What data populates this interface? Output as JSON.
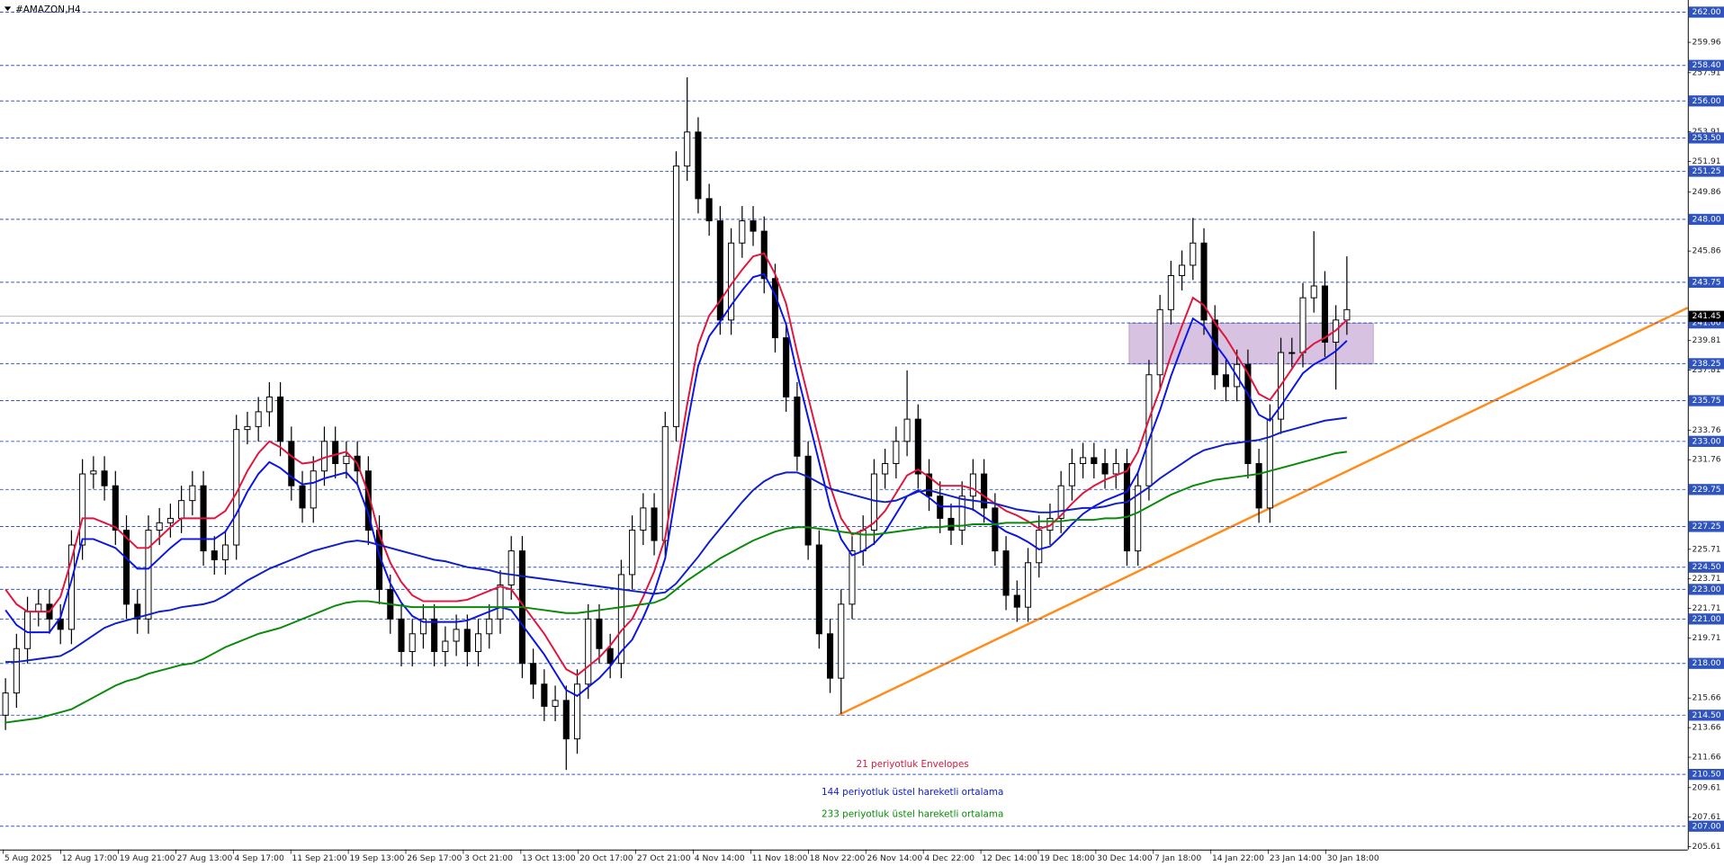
{
  "chart_data": {
    "type": "candlestick",
    "title": "#AMAZON,H4",
    "xtick_labels": [
      "5 Aug 2025",
      "12 Aug 17:00",
      "19 Aug 21:00",
      "27 Aug 13:00",
      "4 Sep 17:00",
      "11 Sep 21:00",
      "19 Sep 13:00",
      "26 Sep 17:00",
      "3 Oct 21:00",
      "13 Oct 13:00",
      "20 Oct 17:00",
      "27 Oct 21:00",
      "4 Nov 14:00",
      "11 Nov 18:00",
      "18 Nov 22:00",
      "26 Nov 14:00",
      "4 Dec 22:00",
      "12 Dec 14:00",
      "19 Dec 18:00",
      "30 Dec 14:00",
      "7 Jan 18:00",
      "14 Jan 22:00",
      "23 Jan 14:00",
      "30 Jan 18:00"
    ],
    "ylim": [
      205.43,
      262.82
    ],
    "yticks": [
      259.96,
      257.91,
      253.91,
      251.91,
      249.86,
      245.86,
      239.81,
      237.81,
      233.76,
      231.76,
      225.71,
      223.71,
      221.71,
      219.71,
      215.66,
      213.66,
      211.66,
      209.61,
      207.61,
      205.61
    ],
    "levels": [
      {
        "value": 262,
        "label": "262.00"
      },
      {
        "value": 258.4,
        "label": "258.40"
      },
      {
        "value": 256,
        "label": "256.00"
      },
      {
        "value": 253.5,
        "label": "253.50"
      },
      {
        "value": 251.25,
        "label": "251.25"
      },
      {
        "value": 248,
        "label": "248.00"
      },
      {
        "value": 243.75,
        "label": "243.75"
      },
      {
        "value": 241,
        "label": "241.00"
      },
      {
        "value": 238.25,
        "label": "238.25"
      },
      {
        "value": 235.75,
        "label": "235.75"
      },
      {
        "value": 233,
        "label": "233.00"
      },
      {
        "value": 229.75,
        "label": "229.75"
      },
      {
        "value": 227.25,
        "label": "227.25"
      },
      {
        "value": 224.5,
        "label": "224.50"
      },
      {
        "value": 223,
        "label": "223.00"
      },
      {
        "value": 221,
        "label": "221.00"
      },
      {
        "value": 218,
        "label": "218.00"
      },
      {
        "value": 214.5,
        "label": "214.50"
      },
      {
        "value": 210.5,
        "label": "210.50"
      },
      {
        "value": 207,
        "label": "207.00"
      }
    ],
    "level_color": "#2f54c0",
    "current_price": {
      "value": 241.45,
      "label": "241.45"
    },
    "candles": {
      "open": [
        214.5,
        216,
        219,
        221.5,
        222,
        221,
        220.3,
        226,
        230.8,
        231,
        230,
        227,
        222,
        221,
        227,
        227.5,
        227.8,
        229,
        230,
        225.6,
        225,
        226,
        233.8,
        234,
        235,
        236,
        233,
        230,
        228.5,
        231,
        233,
        231.5,
        232,
        231,
        227,
        223,
        221,
        218.8,
        220,
        221,
        218.8,
        219.5,
        220.3,
        218.8,
        220,
        221,
        223.3,
        225.6,
        218,
        216.6,
        215.1,
        215.5,
        212.9,
        216.6,
        221,
        219,
        218,
        224,
        227,
        228.5,
        226.3,
        234,
        251.6,
        253.9,
        249.4,
        247.9,
        241.2,
        246.4,
        247.9,
        247.2,
        244,
        240,
        236,
        232,
        226,
        220,
        217,
        222,
        225.6,
        227,
        230.8,
        231.5,
        233,
        234.5,
        230.8,
        229.3,
        227.8,
        227,
        229.3,
        230.8,
        228.5,
        225.6,
        222.6,
        221.8,
        224.8,
        227,
        227.8,
        230,
        231.5,
        231.9,
        231.5,
        230.8,
        231.5,
        225.6,
        230,
        237.5,
        241.9,
        244.2,
        244.9,
        246.4,
        241.2,
        237.5,
        236.7,
        238.2,
        231.5,
        228.5,
        234.5,
        239,
        239,
        242.7,
        243.5,
        239.7,
        241.2
      ],
      "high": [
        217,
        220,
        222.5,
        223,
        223,
        222,
        227,
        231.8,
        232,
        232,
        231,
        228,
        223,
        228,
        228.5,
        228.8,
        230,
        231,
        231,
        226.6,
        227,
        234.8,
        235,
        236,
        237,
        237,
        234,
        231,
        232,
        234,
        234,
        233,
        233,
        232,
        228,
        224,
        222,
        221,
        222,
        222,
        220.5,
        221.3,
        221.3,
        221,
        222,
        224.3,
        226.6,
        226.6,
        219,
        217.6,
        216.5,
        216.5,
        217.6,
        222,
        222,
        220,
        225,
        228,
        229.5,
        229.5,
        235,
        252.6,
        257.6,
        254.9,
        250.4,
        248.9,
        247.4,
        248.9,
        248.9,
        248.2,
        245,
        241,
        237,
        233,
        227,
        221,
        223,
        226.6,
        228,
        231.8,
        232.5,
        234,
        237.8,
        235.5,
        231.8,
        230.3,
        228.8,
        230.3,
        231.8,
        231.8,
        229.5,
        226.6,
        223.6,
        225.8,
        228,
        228.8,
        231,
        232.5,
        232.9,
        232.9,
        232.5,
        232.5,
        232.5,
        231,
        238.5,
        242.9,
        245.2,
        245.9,
        248.1,
        247.4,
        242.2,
        238.5,
        239.2,
        239.2,
        232.5,
        235.5,
        240,
        240,
        243.7,
        247.2,
        244.5,
        242.2,
        245.5
      ],
      "low": [
        213.5,
        215,
        218,
        220.5,
        220,
        219.3,
        219.3,
        225,
        229.8,
        229,
        226,
        221,
        220,
        220,
        226,
        226.5,
        226.8,
        228,
        224.6,
        224,
        224,
        225,
        232.8,
        233,
        234,
        232,
        229,
        227.5,
        227.5,
        230,
        230.5,
        230.5,
        230,
        226,
        222,
        220,
        217.8,
        217.8,
        219,
        217.8,
        217.8,
        218.5,
        217.8,
        217.8,
        219,
        220,
        222.3,
        217,
        215.6,
        214.1,
        214.1,
        210.8,
        211.9,
        215.6,
        218,
        217,
        217,
        223,
        226,
        225.3,
        225.3,
        233,
        250.6,
        248.4,
        246.9,
        240.2,
        240.2,
        245.4,
        246.2,
        243,
        239,
        235,
        231,
        225,
        219,
        216,
        214.6,
        221,
        224.6,
        226,
        229.8,
        230.5,
        232,
        229.8,
        228.3,
        226.8,
        226,
        226,
        228.3,
        227.5,
        224.6,
        221.6,
        220.8,
        220.8,
        223.8,
        226,
        226.8,
        229,
        230.5,
        230.5,
        229.8,
        229.8,
        224.6,
        224.6,
        229,
        236.5,
        240.9,
        243.2,
        243.9,
        240.2,
        236.5,
        235.7,
        235.7,
        230.5,
        227.5,
        227.5,
        233.5,
        238,
        238,
        241.7,
        238.7,
        236.5,
        240.2
      ],
      "close": [
        216,
        219,
        221.5,
        222,
        221,
        220.3,
        226,
        230.8,
        231,
        230,
        227,
        222,
        221,
        227,
        227.5,
        227.8,
        229,
        230,
        225.6,
        225,
        226,
        233.8,
        234,
        235,
        236,
        233,
        230,
        228.5,
        231,
        233,
        231.5,
        232,
        231,
        227,
        223,
        221,
        218.8,
        220,
        221,
        218.8,
        219.5,
        220.3,
        218.8,
        220,
        221,
        223.3,
        225.6,
        218,
        216.6,
        215.1,
        215.5,
        212.9,
        216.6,
        221,
        219,
        218,
        224,
        227,
        228.5,
        226.3,
        234,
        251.6,
        253.9,
        249.4,
        247.9,
        241.2,
        246.4,
        247.9,
        247.2,
        244,
        240,
        236,
        232,
        226,
        220,
        217,
        222,
        225.6,
        227,
        230.8,
        231.5,
        233,
        234.5,
        230.8,
        229.3,
        227.8,
        227,
        229.3,
        230.8,
        228.5,
        225.6,
        222.6,
        221.8,
        224.8,
        227,
        227.8,
        230,
        231.5,
        231.9,
        231.5,
        230.8,
        231.5,
        225.6,
        230,
        237.5,
        241.9,
        244.2,
        244.9,
        246.4,
        241.2,
        237.5,
        236.7,
        238.2,
        231.5,
        228.5,
        234.5,
        239,
        239,
        242.7,
        243.5,
        239.7,
        241.2,
        241.9
      ]
    },
    "series": [
      {
        "name": "21 periyotluk Envelopes",
        "color": "#e0143c",
        "values": [
          223,
          222,
          221.5,
          221.5,
          221.5,
          222.5,
          225,
          227.8,
          227.8,
          227.5,
          227.2,
          226.5,
          225.8,
          225.8,
          226.5,
          227.2,
          227.8,
          227.8,
          227.8,
          227.8,
          228.3,
          229.5,
          231,
          232.2,
          233,
          232.6,
          232,
          231.5,
          231.6,
          231.9,
          232.1,
          232.3,
          231.5,
          229.5,
          226.7,
          224.8,
          223.5,
          222.6,
          222.2,
          222.2,
          222.2,
          222.2,
          222.3,
          222.6,
          222.9,
          223.2,
          223,
          222,
          221,
          220,
          218.8,
          217.6,
          217.2,
          217.8,
          218.4,
          219.2,
          220.2,
          221,
          222.5,
          224.2,
          226.5,
          231,
          235.5,
          239.5,
          241.5,
          242.5,
          243.6,
          244.6,
          245.5,
          245.7,
          244.3,
          242.3,
          239,
          236,
          233,
          230,
          227.8,
          226.7,
          227,
          227.5,
          228.3,
          229.5,
          230.7,
          231.1,
          230.6,
          230,
          230,
          230,
          229.8,
          229.3,
          228.8,
          228.3,
          228,
          227.6,
          227.1,
          227.3,
          228,
          228.8,
          229.5,
          230,
          230.4,
          230.7,
          231,
          232.3,
          234.5,
          236.5,
          238.8,
          240.8,
          242.7,
          242.2,
          241,
          240,
          238.8,
          237.6,
          236.2,
          235.8,
          236.8,
          237.9,
          239,
          239.6,
          240,
          240.5,
          241.2
        ],
        "lower_color": "#0a14e6",
        "lower_values": [
          221.6,
          220.6,
          220.1,
          220.1,
          220.1,
          221.1,
          223.6,
          226.4,
          226.4,
          226.1,
          225.8,
          225.1,
          224.4,
          224.4,
          225.1,
          225.8,
          226.4,
          226.4,
          226.4,
          226.4,
          226.9,
          228.1,
          229.6,
          230.8,
          231.6,
          231.2,
          230.6,
          230.1,
          230.2,
          230.5,
          230.7,
          230.9,
          230.1,
          228.1,
          225.3,
          223.4,
          222.1,
          221.2,
          220.8,
          220.8,
          220.8,
          220.8,
          220.9,
          221.2,
          221.5,
          221.8,
          221.6,
          220.6,
          219.6,
          218.6,
          217.4,
          216.2,
          215.8,
          216.4,
          217,
          217.8,
          218.8,
          219.6,
          221.1,
          222.8,
          225.1,
          229.6,
          234.1,
          238.1,
          240.1,
          241.1,
          242.2,
          243.2,
          244.1,
          244.3,
          242.9,
          240.9,
          237.6,
          234.6,
          231.6,
          228.6,
          226.4,
          225.3,
          225.6,
          226.1,
          226.9,
          228.1,
          229.3,
          229.7,
          229.2,
          228.6,
          228.6,
          228.6,
          228.4,
          227.9,
          227.4,
          226.9,
          226.6,
          226.2,
          225.7,
          225.9,
          226.6,
          227.4,
          228.1,
          228.6,
          229,
          229.3,
          229.6,
          230.9,
          233.1,
          235.1,
          237.4,
          239.4,
          241.3,
          240.8,
          239.6,
          238.6,
          237.4,
          236.2,
          234.8,
          234.4,
          235.4,
          236.5,
          237.6,
          238.2,
          238.6,
          239.1,
          239.8
        ]
      },
      {
        "name": "144 periyotluk üstel hareketli ortalama",
        "color": "#1020c8",
        "values": [
          218.1,
          218.1,
          218.2,
          218.3,
          218.4,
          218.5,
          218.9,
          219.4,
          219.9,
          220.4,
          220.7,
          220.9,
          221.1,
          221.3,
          221.5,
          221.6,
          221.8,
          221.9,
          222,
          222.2,
          222.6,
          223.1,
          223.6,
          224,
          224.4,
          224.7,
          225,
          225.3,
          225.6,
          225.8,
          226,
          226.2,
          226.3,
          226.2,
          226,
          225.8,
          225.6,
          225.4,
          225.2,
          225,
          224.9,
          224.7,
          224.5,
          224.4,
          224.3,
          224.1,
          224,
          223.9,
          223.8,
          223.7,
          223.6,
          223.5,
          223.4,
          223.3,
          223.2,
          223.1,
          223,
          222.9,
          222.8,
          222.7,
          222.8,
          223.4,
          224.3,
          225.2,
          226.2,
          227.1,
          228,
          228.9,
          229.7,
          230.3,
          230.7,
          230.9,
          230.9,
          230.6,
          230.2,
          229.8,
          229.6,
          229.4,
          229.2,
          229,
          228.9,
          229,
          229.3,
          229.6,
          229.7,
          229.5,
          229.3,
          229.1,
          229,
          228.9,
          228.8,
          228.6,
          228.4,
          228.3,
          228.2,
          228.2,
          228.3,
          228.4,
          228.5,
          228.5,
          228.6,
          228.8,
          228.9,
          229.4,
          229.9,
          230.5,
          231,
          231.5,
          232,
          232.4,
          232.6,
          232.8,
          232.9,
          233,
          233.1,
          233.3,
          233.6,
          233.8,
          234,
          234.2,
          234.4,
          234.5,
          234.6
        ]
      },
      {
        "name": "233 periyotluk üstel hareketli ortalama",
        "color": "#0a8a0a",
        "values": [
          214,
          214.1,
          214.2,
          214.3,
          214.5,
          214.7,
          214.9,
          215.3,
          215.7,
          216.1,
          216.5,
          216.8,
          217,
          217.3,
          217.5,
          217.7,
          217.9,
          218,
          218.3,
          218.7,
          219.1,
          219.4,
          219.7,
          220,
          220.2,
          220.4,
          220.7,
          221,
          221.3,
          221.6,
          221.9,
          222.1,
          222.2,
          222.2,
          222.1,
          222,
          221.9,
          221.8,
          221.8,
          221.8,
          221.8,
          221.8,
          221.8,
          221.8,
          221.8,
          221.8,
          221.8,
          221.8,
          221.7,
          221.6,
          221.5,
          221.4,
          221.4,
          221.5,
          221.6,
          221.7,
          221.8,
          221.9,
          222,
          222.1,
          222.4,
          223,
          223.6,
          224.1,
          224.6,
          225.1,
          225.5,
          225.9,
          226.3,
          226.6,
          226.9,
          227.1,
          227.2,
          227.2,
          227.1,
          227,
          226.9,
          226.8,
          226.7,
          226.7,
          226.8,
          226.9,
          227,
          227.1,
          227.2,
          227.2,
          227.3,
          227.3,
          227.4,
          227.4,
          227.4,
          227.5,
          227.5,
          227.5,
          227.6,
          227.6,
          227.6,
          227.7,
          227.7,
          227.7,
          227.8,
          227.8,
          227.9,
          228.2,
          228.6,
          229,
          229.4,
          229.7,
          230,
          230.2,
          230.4,
          230.5,
          230.6,
          230.7,
          230.8,
          231,
          231.2,
          231.4,
          231.6,
          231.8,
          232,
          232.2,
          232.3
        ]
      }
    ]
  }
}
